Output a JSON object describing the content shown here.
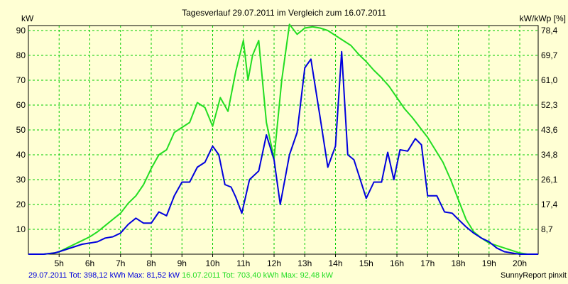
{
  "chart_data": {
    "type": "line",
    "title": "Tagesverlauf 29.07.2011 im Vergleich zum 16.07.2011",
    "ylabel_left": "kW",
    "ylabel_right": "kW/kWp [%]",
    "ylim": [
      0,
      92
    ],
    "xlim": [
      4.0,
      20.6
    ],
    "grid": true,
    "x_ticks": [
      5,
      6,
      7,
      8,
      9,
      10,
      11,
      12,
      13,
      14,
      15,
      16,
      17,
      18,
      19,
      20
    ],
    "x_tick_labels": [
      "5h",
      "6h",
      "7h",
      "8h",
      "9h",
      "10h",
      "11h",
      "12h",
      "13h",
      "14h",
      "15h",
      "16h",
      "17h",
      "18h",
      "19h",
      "20h"
    ],
    "y_ticks_left": [
      10,
      20,
      30,
      40,
      50,
      60,
      70,
      80,
      90
    ],
    "y_tick_labels_left": [
      "10",
      "20",
      "30",
      "40",
      "50",
      "60",
      "70",
      "80",
      "90"
    ],
    "y_tick_labels_right": [
      "8,7",
      "17,4",
      "26,1",
      "34,8",
      "43,6",
      "52,3",
      "61,0",
      "69,7",
      "78,4"
    ],
    "series": [
      {
        "name": "29.07.2011",
        "color": "#0000dd",
        "points": [
          [
            4.0,
            0
          ],
          [
            4.5,
            0
          ],
          [
            4.85,
            0.5
          ],
          [
            5.0,
            1
          ],
          [
            5.25,
            2
          ],
          [
            5.5,
            3
          ],
          [
            5.75,
            4
          ],
          [
            6.0,
            4.5
          ],
          [
            6.25,
            5
          ],
          [
            6.5,
            6.5
          ],
          [
            6.75,
            7
          ],
          [
            7.0,
            8.5
          ],
          [
            7.25,
            12
          ],
          [
            7.5,
            14.5
          ],
          [
            7.75,
            12.5
          ],
          [
            8.0,
            12.5
          ],
          [
            8.25,
            17
          ],
          [
            8.5,
            15.5
          ],
          [
            8.75,
            23.5
          ],
          [
            9.0,
            29
          ],
          [
            9.25,
            29
          ],
          [
            9.5,
            35
          ],
          [
            9.75,
            37
          ],
          [
            10.0,
            43.5
          ],
          [
            10.2,
            40
          ],
          [
            10.4,
            28
          ],
          [
            10.6,
            27
          ],
          [
            10.75,
            23
          ],
          [
            10.95,
            16.5
          ],
          [
            11.2,
            30
          ],
          [
            11.5,
            33.5
          ],
          [
            11.75,
            48
          ],
          [
            12.0,
            38
          ],
          [
            12.2,
            20
          ],
          [
            12.5,
            40
          ],
          [
            12.75,
            49
          ],
          [
            13.0,
            75
          ],
          [
            13.2,
            78.5
          ],
          [
            13.5,
            55
          ],
          [
            13.75,
            35
          ],
          [
            14.0,
            43.5
          ],
          [
            14.2,
            81.5
          ],
          [
            14.4,
            40
          ],
          [
            14.6,
            38
          ],
          [
            15.0,
            22.5
          ],
          [
            15.25,
            29
          ],
          [
            15.5,
            29
          ],
          [
            15.7,
            41
          ],
          [
            15.9,
            30
          ],
          [
            16.1,
            42
          ],
          [
            16.35,
            41.5
          ],
          [
            16.6,
            46.5
          ],
          [
            16.8,
            44
          ],
          [
            17.0,
            23.5
          ],
          [
            17.3,
            23.5
          ],
          [
            17.55,
            17
          ],
          [
            17.8,
            16.5
          ],
          [
            18.0,
            14
          ],
          [
            18.25,
            11
          ],
          [
            18.5,
            8.5
          ],
          [
            18.75,
            6.5
          ],
          [
            19.0,
            5
          ],
          [
            19.25,
            2.5
          ],
          [
            19.5,
            1
          ],
          [
            19.75,
            0.5
          ],
          [
            20.0,
            0
          ],
          [
            20.6,
            0
          ]
        ]
      },
      {
        "name": "16.07.2011",
        "color": "#22dd22",
        "points": [
          [
            4.0,
            0
          ],
          [
            4.5,
            0
          ],
          [
            4.85,
            0.5
          ],
          [
            5.0,
            1
          ],
          [
            5.25,
            2.5
          ],
          [
            5.5,
            4
          ],
          [
            5.75,
            5.5
          ],
          [
            6.0,
            7
          ],
          [
            6.25,
            9
          ],
          [
            6.5,
            11.5
          ],
          [
            6.75,
            14
          ],
          [
            7.0,
            16.5
          ],
          [
            7.25,
            20.5
          ],
          [
            7.5,
            23.5
          ],
          [
            7.75,
            28
          ],
          [
            8.0,
            34.5
          ],
          [
            8.25,
            40
          ],
          [
            8.5,
            42
          ],
          [
            8.75,
            49
          ],
          [
            9.0,
            51
          ],
          [
            9.25,
            53
          ],
          [
            9.5,
            61
          ],
          [
            9.75,
            59
          ],
          [
            10.0,
            51.5
          ],
          [
            10.25,
            63
          ],
          [
            10.5,
            57.5
          ],
          [
            10.75,
            73.5
          ],
          [
            11.0,
            86
          ],
          [
            11.15,
            70
          ],
          [
            11.3,
            80
          ],
          [
            11.5,
            86
          ],
          [
            11.75,
            53
          ],
          [
            12.0,
            38.5
          ],
          [
            12.25,
            70
          ],
          [
            12.5,
            92.5
          ],
          [
            12.75,
            88.5
          ],
          [
            13.0,
            91
          ],
          [
            13.25,
            91.5
          ],
          [
            13.5,
            91
          ],
          [
            13.75,
            90
          ],
          [
            14.0,
            88
          ],
          [
            14.25,
            86
          ],
          [
            14.5,
            84
          ],
          [
            14.75,
            80.5
          ],
          [
            15.0,
            77.5
          ],
          [
            15.25,
            74
          ],
          [
            15.5,
            71
          ],
          [
            15.75,
            67.5
          ],
          [
            16.0,
            63
          ],
          [
            16.25,
            58.5
          ],
          [
            16.5,
            55
          ],
          [
            16.75,
            51
          ],
          [
            17.0,
            47
          ],
          [
            17.25,
            42
          ],
          [
            17.5,
            37
          ],
          [
            17.75,
            30
          ],
          [
            18.0,
            22
          ],
          [
            18.25,
            14
          ],
          [
            18.5,
            9
          ],
          [
            18.75,
            6.5
          ],
          [
            19.0,
            4.5
          ],
          [
            19.25,
            3.5
          ],
          [
            19.5,
            2.5
          ],
          [
            19.75,
            1.5
          ],
          [
            20.0,
            0.5
          ],
          [
            20.25,
            0
          ],
          [
            20.6,
            0
          ]
        ]
      }
    ]
  },
  "footer": {
    "series1_label": "29.07.2011 Tot: 398,12 kWh Max: 81,52 kW",
    "series2_label": "16.07.2011 Tot: 703,40 kWh Max: 92,48 kW",
    "credit": "SunnyReport pinxit"
  },
  "colors": {
    "background": "#ffffd4",
    "grid": "#00cc00",
    "series1": "#0000dd",
    "series2": "#22dd22"
  }
}
